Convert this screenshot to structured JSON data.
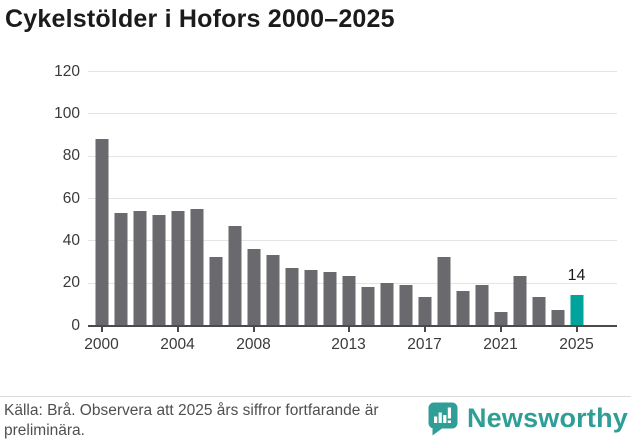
{
  "title": "Cykelstölder i Hofors 2000–2025",
  "chart_data": {
    "type": "bar",
    "x": [
      2000,
      2001,
      2002,
      2003,
      2004,
      2005,
      2006,
      2007,
      2008,
      2009,
      2010,
      2011,
      2012,
      2013,
      2014,
      2015,
      2016,
      2017,
      2018,
      2019,
      2020,
      2021,
      2022,
      2023,
      2024,
      2025
    ],
    "values": [
      88,
      53,
      54,
      52,
      54,
      55,
      32,
      47,
      36,
      33,
      27,
      26,
      25,
      23,
      18,
      20,
      19,
      13,
      32,
      16,
      19,
      6,
      23,
      13,
      7,
      14
    ],
    "title": "Cykelstölder i Hofors 2000–2025",
    "xlabel": "",
    "ylabel": "",
    "ylim": [
      0,
      120
    ],
    "yticks": [
      0,
      20,
      40,
      60,
      80,
      100,
      120
    ],
    "xticks": [
      2000,
      2004,
      2008,
      2013,
      2017,
      2021,
      2025
    ],
    "grid": true,
    "legend": "none",
    "bar_color": "#6a6a6e",
    "highlight_year": 2025,
    "highlight_color": "#00a49c",
    "highlight_value_label": "14"
  },
  "footer": {
    "source_text": "Källa: Brå. Observera att 2025 års siffror fortfarande är preliminära.",
    "brand": "Newsworthy",
    "brand_color": "#2f9e96"
  }
}
